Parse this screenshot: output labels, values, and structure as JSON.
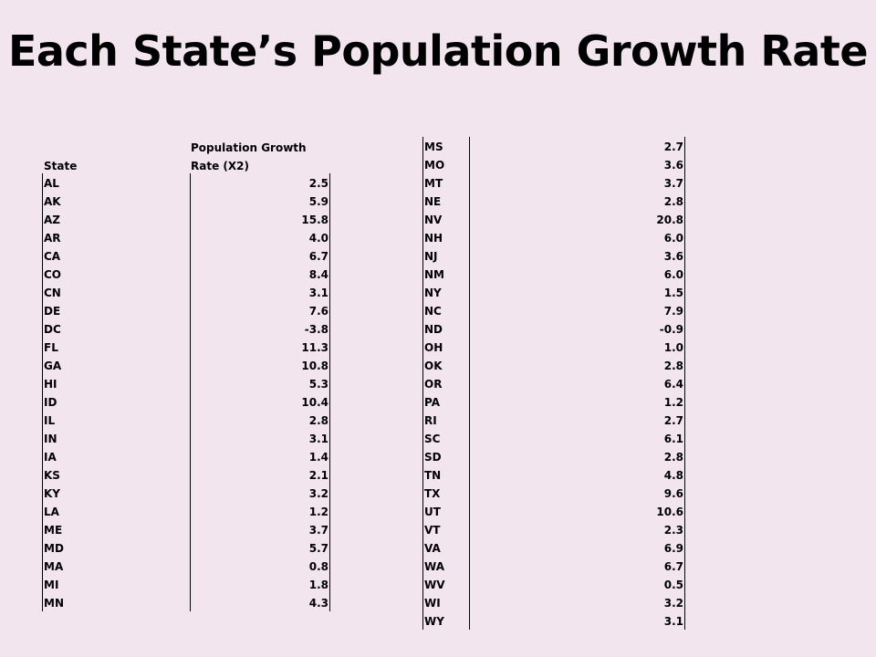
{
  "title": "Each State’s Population Growth Rate",
  "header": {
    "state": "State",
    "rate_line1": "Population Growth",
    "rate_line2": "Rate (X2)"
  },
  "left_rows": [
    {
      "state": "AL",
      "rate": "2.5"
    },
    {
      "state": "AK",
      "rate": "5.9"
    },
    {
      "state": "AZ",
      "rate": "15.8"
    },
    {
      "state": "AR",
      "rate": "4.0"
    },
    {
      "state": "CA",
      "rate": "6.7"
    },
    {
      "state": "CO",
      "rate": "8.4"
    },
    {
      "state": "CN",
      "rate": "3.1"
    },
    {
      "state": "DE",
      "rate": "7.6"
    },
    {
      "state": "DC",
      "rate": "-3.8"
    },
    {
      "state": "FL",
      "rate": "11.3"
    },
    {
      "state": "GA",
      "rate": "10.8"
    },
    {
      "state": "HI",
      "rate": "5.3"
    },
    {
      "state": "ID",
      "rate": "10.4"
    },
    {
      "state": "IL",
      "rate": "2.8"
    },
    {
      "state": "IN",
      "rate": "3.1"
    },
    {
      "state": "IA",
      "rate": "1.4"
    },
    {
      "state": "KS",
      "rate": "2.1"
    },
    {
      "state": "KY",
      "rate": "3.2"
    },
    {
      "state": "LA",
      "rate": "1.2"
    },
    {
      "state": "ME",
      "rate": "3.7"
    },
    {
      "state": "MD",
      "rate": "5.7"
    },
    {
      "state": "MA",
      "rate": "0.8"
    },
    {
      "state": "MI",
      "rate": "1.8"
    },
    {
      "state": "MN",
      "rate": "4.3"
    }
  ],
  "right_rows": [
    {
      "state": "MS",
      "rate": "2.7"
    },
    {
      "state": "MO",
      "rate": "3.6"
    },
    {
      "state": "MT",
      "rate": "3.7"
    },
    {
      "state": "NE",
      "rate": "2.8"
    },
    {
      "state": "NV",
      "rate": "20.8"
    },
    {
      "state": "NH",
      "rate": "6.0"
    },
    {
      "state": "NJ",
      "rate": "3.6"
    },
    {
      "state": "NM",
      "rate": "6.0"
    },
    {
      "state": "NY",
      "rate": "1.5"
    },
    {
      "state": "NC",
      "rate": "7.9"
    },
    {
      "state": "ND",
      "rate": "-0.9"
    },
    {
      "state": "OH",
      "rate": "1.0"
    },
    {
      "state": "OK",
      "rate": "2.8"
    },
    {
      "state": "OR",
      "rate": "6.4"
    },
    {
      "state": "PA",
      "rate": "1.2"
    },
    {
      "state": "RI",
      "rate": "2.7"
    },
    {
      "state": "SC",
      "rate": "6.1"
    },
    {
      "state": "SD",
      "rate": "2.8"
    },
    {
      "state": "TN",
      "rate": "4.8"
    },
    {
      "state": "TX",
      "rate": "9.6"
    },
    {
      "state": "UT",
      "rate": "10.6"
    },
    {
      "state": "VT",
      "rate": "2.3"
    },
    {
      "state": "VA",
      "rate": "6.9"
    },
    {
      "state": "WA",
      "rate": "6.7"
    },
    {
      "state": "WV",
      "rate": "0.5"
    },
    {
      "state": "WI",
      "rate": "3.2"
    },
    {
      "state": "WY",
      "rate": "3.1"
    }
  ]
}
